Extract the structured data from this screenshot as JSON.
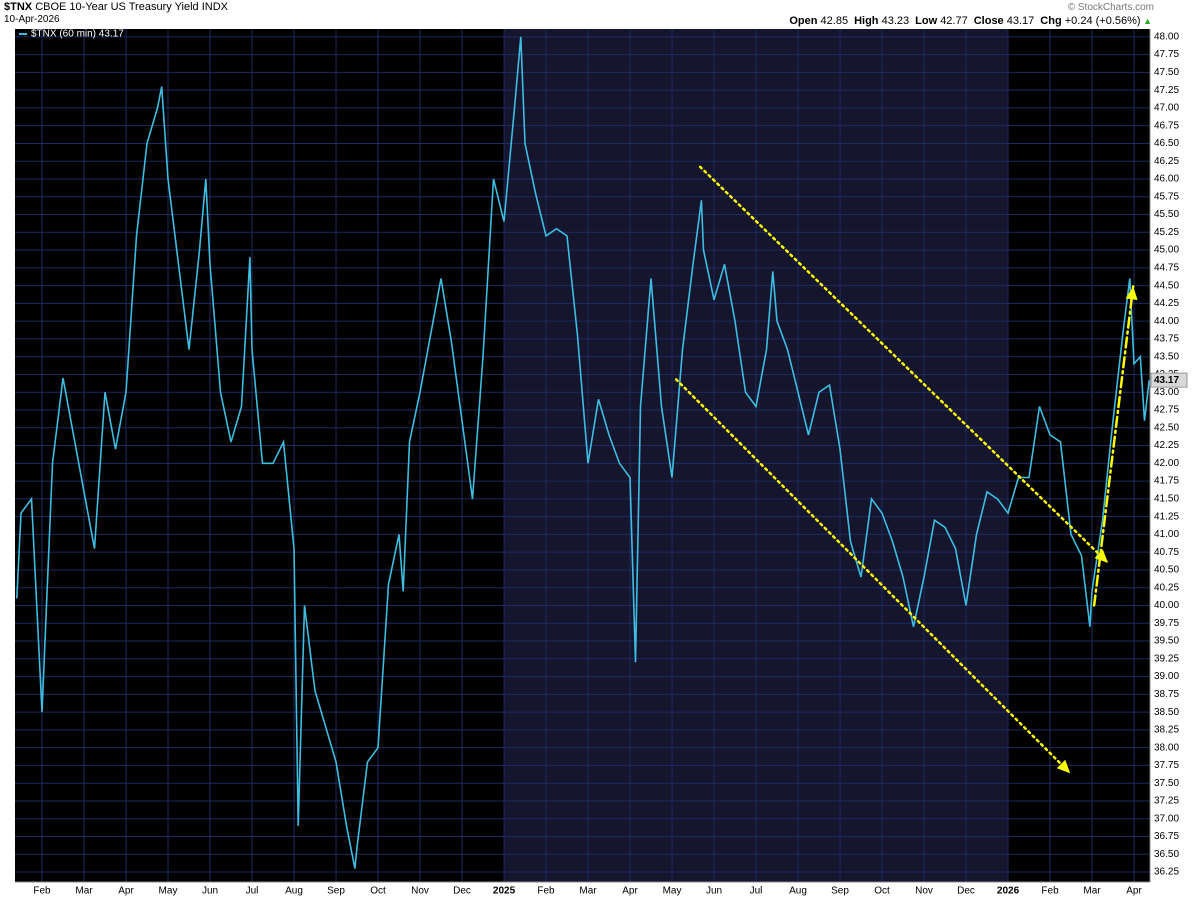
{
  "header": {
    "symbol": "$TNX",
    "name": "CBOE 10-Year US Treasury Yield INDX",
    "date": "10-Apr-2026",
    "brand": "© StockCharts.com",
    "stats": [
      {
        "label": "Open",
        "value": "42.85"
      },
      {
        "label": "High",
        "value": "43.23"
      },
      {
        "label": "Low",
        "value": "42.77"
      },
      {
        "label": "Close",
        "value": "43.17"
      },
      {
        "label": "Chg",
        "value": "+0.24 (+0.56%)"
      }
    ]
  },
  "chart_data": {
    "type": "line",
    "grid": true,
    "background": "#000000",
    "shade_color": "#15152e",
    "grid_color": "#1d2b5e",
    "xlim": [
      0.357,
      27.38
    ],
    "ylim": [
      36.11,
      48.11
    ],
    "xticks": [
      {
        "value": 1,
        "label": "Feb"
      },
      {
        "value": 2,
        "label": "Mar"
      },
      {
        "value": 3,
        "label": "Apr"
      },
      {
        "value": 4,
        "label": "May"
      },
      {
        "value": 5,
        "label": "Jun"
      },
      {
        "value": 6,
        "label": "Jul"
      },
      {
        "value": 7,
        "label": "Aug"
      },
      {
        "value": 8,
        "label": "Sep"
      },
      {
        "value": 9,
        "label": "Oct"
      },
      {
        "value": 10,
        "label": "Nov"
      },
      {
        "value": 11,
        "label": "Dec"
      },
      {
        "value": 12,
        "label": "2025"
      },
      {
        "value": 13,
        "label": "Feb"
      },
      {
        "value": 14,
        "label": "Mar"
      },
      {
        "value": 15,
        "label": "Apr"
      },
      {
        "value": 16,
        "label": "May"
      },
      {
        "value": 17,
        "label": "Jun"
      },
      {
        "value": 18,
        "label": "Jul"
      },
      {
        "value": 19,
        "label": "Aug"
      },
      {
        "value": 20,
        "label": "Sep"
      },
      {
        "value": 21,
        "label": "Oct"
      },
      {
        "value": 22,
        "label": "Nov"
      },
      {
        "value": 23,
        "label": "Dec"
      },
      {
        "value": 24,
        "label": "2026"
      },
      {
        "value": 25,
        "label": "Feb"
      },
      {
        "value": 26,
        "label": "Mar"
      },
      {
        "value": 27,
        "label": "Apr"
      }
    ],
    "yticks": [
      36.25,
      {
        "value": 36.5,
        "label": "36.50"
      },
      36.75,
      {
        "value": 37,
        "label": "37.00"
      },
      37.25,
      {
        "value": 37.5,
        "label": "37.50"
      },
      37.75,
      {
        "value": 38,
        "label": "38.00"
      },
      38.25,
      {
        "value": 38.5,
        "label": "38.50"
      },
      38.75,
      {
        "value": 39,
        "label": "39.00"
      },
      39.25,
      {
        "value": 39.5,
        "label": "39.50"
      },
      39.75,
      {
        "value": 40,
        "label": "40.00"
      },
      40.25,
      {
        "value": 40.5,
        "label": "40.50"
      },
      40.75,
      {
        "value": 41,
        "label": "41.00"
      },
      41.25,
      {
        "value": 41.5,
        "label": "41.50"
      },
      41.75,
      {
        "value": 42,
        "label": "42.00"
      },
      42.25,
      {
        "value": 42.5,
        "label": "42.50"
      },
      42.75,
      {
        "value": 43,
        "label": "43.00"
      },
      43.25,
      {
        "value": 43.5,
        "label": "43.50"
      },
      43.75,
      {
        "value": 44,
        "label": "44.00"
      },
      44.25,
      {
        "value": 44.5,
        "label": "44.50"
      },
      44.75,
      {
        "value": 45,
        "label": "45.00"
      },
      45.25,
      {
        "value": 45.5,
        "label": "45.50"
      },
      45.75,
      {
        "value": 46,
        "label": "46.00"
      },
      46.25,
      {
        "value": 46.5,
        "label": "46.50"
      },
      46.75,
      {
        "value": 47,
        "label": "47.00"
      },
      47.25,
      {
        "value": 47.5,
        "label": "47.50"
      },
      47.75,
      {
        "value": 48,
        "label": "48.00"
      }
    ],
    "series": [
      {
        "name": "$TNX (60 min) 43.17",
        "color": "#3fbde0",
        "x": [
          0.4,
          0.5,
          0.75,
          1.0,
          1.25,
          1.5,
          1.75,
          2.0,
          2.25,
          2.5,
          2.75,
          3.0,
          3.25,
          3.5,
          3.75,
          3.85,
          4.0,
          4.25,
          4.5,
          4.75,
          4.9,
          5.0,
          5.25,
          5.5,
          5.75,
          5.95,
          6.0,
          6.25,
          6.5,
          6.75,
          7.0,
          7.1,
          7.25,
          7.5,
          7.75,
          8.0,
          8.25,
          8.45,
          8.5,
          8.75,
          9.0,
          9.25,
          9.5,
          9.6,
          9.75,
          10.0,
          10.25,
          10.5,
          10.75,
          11.0,
          11.25,
          11.5,
          11.75,
          12.0,
          12.25,
          12.4,
          12.5,
          12.75,
          13.0,
          13.25,
          13.5,
          13.75,
          14.0,
          14.25,
          14.5,
          14.75,
          15.0,
          15.13,
          15.25,
          15.5,
          15.75,
          16.0,
          16.25,
          16.5,
          16.7,
          16.75,
          17.0,
          17.25,
          17.5,
          17.75,
          18.0,
          18.25,
          18.4,
          18.5,
          18.75,
          19.0,
          19.25,
          19.5,
          19.75,
          20.0,
          20.25,
          20.5,
          20.75,
          21.0,
          21.25,
          21.5,
          21.75,
          22.0,
          22.25,
          22.5,
          22.75,
          23.0,
          23.25,
          23.5,
          23.75,
          24.0,
          24.25,
          24.5,
          24.75,
          25.0,
          25.25,
          25.5,
          25.75,
          25.95,
          26.0,
          26.25,
          26.5,
          26.75,
          26.9,
          27.0,
          27.15,
          27.25,
          27.36
        ],
        "values": [
          40.1,
          41.3,
          41.5,
          38.5,
          42.0,
          43.2,
          42.4,
          41.6,
          40.8,
          43.0,
          42.2,
          43.0,
          45.2,
          46.5,
          47.0,
          47.3,
          46.0,
          44.8,
          43.6,
          45.0,
          46.0,
          44.8,
          43.0,
          42.3,
          42.8,
          44.9,
          43.6,
          42.0,
          42.0,
          42.3,
          40.8,
          36.9,
          40.0,
          38.8,
          38.3,
          37.8,
          36.9,
          36.3,
          36.6,
          37.8,
          38.0,
          40.3,
          41.0,
          40.2,
          42.3,
          43.0,
          43.8,
          44.6,
          43.7,
          42.6,
          41.5,
          43.5,
          46.0,
          45.4,
          47.0,
          48.0,
          46.5,
          45.8,
          45.2,
          45.3,
          45.2,
          43.8,
          42.0,
          42.9,
          42.4,
          42.0,
          41.8,
          39.2,
          42.8,
          44.6,
          42.8,
          41.8,
          43.6,
          44.8,
          45.7,
          45.0,
          44.3,
          44.8,
          44.0,
          43.0,
          42.8,
          43.6,
          44.7,
          44.0,
          43.6,
          43.0,
          42.4,
          43.0,
          43.1,
          42.2,
          40.9,
          40.4,
          41.5,
          41.3,
          40.9,
          40.4,
          39.7,
          40.4,
          41.2,
          41.1,
          40.8,
          40.0,
          41.0,
          41.6,
          41.5,
          41.3,
          41.8,
          41.8,
          42.8,
          42.4,
          42.3,
          41.0,
          40.7,
          39.7,
          40.2,
          41.2,
          42.6,
          43.9,
          44.6,
          43.4,
          43.5,
          42.6,
          43.17
        ]
      }
    ],
    "annotations": [
      {
        "style": "dotted",
        "color": "#ffff00",
        "x": [
          16.67,
          26.38
        ],
        "y": [
          46.17,
          40.6
        ]
      },
      {
        "style": "dotted",
        "color": "#ffff00",
        "x": [
          16.1,
          25.48
        ],
        "y": [
          43.18,
          37.64
        ]
      },
      {
        "style": "dashdot",
        "color": "#ffff00",
        "x": [
          26.05,
          26.98
        ],
        "y": [
          40.0,
          44.49
        ]
      }
    ]
  }
}
